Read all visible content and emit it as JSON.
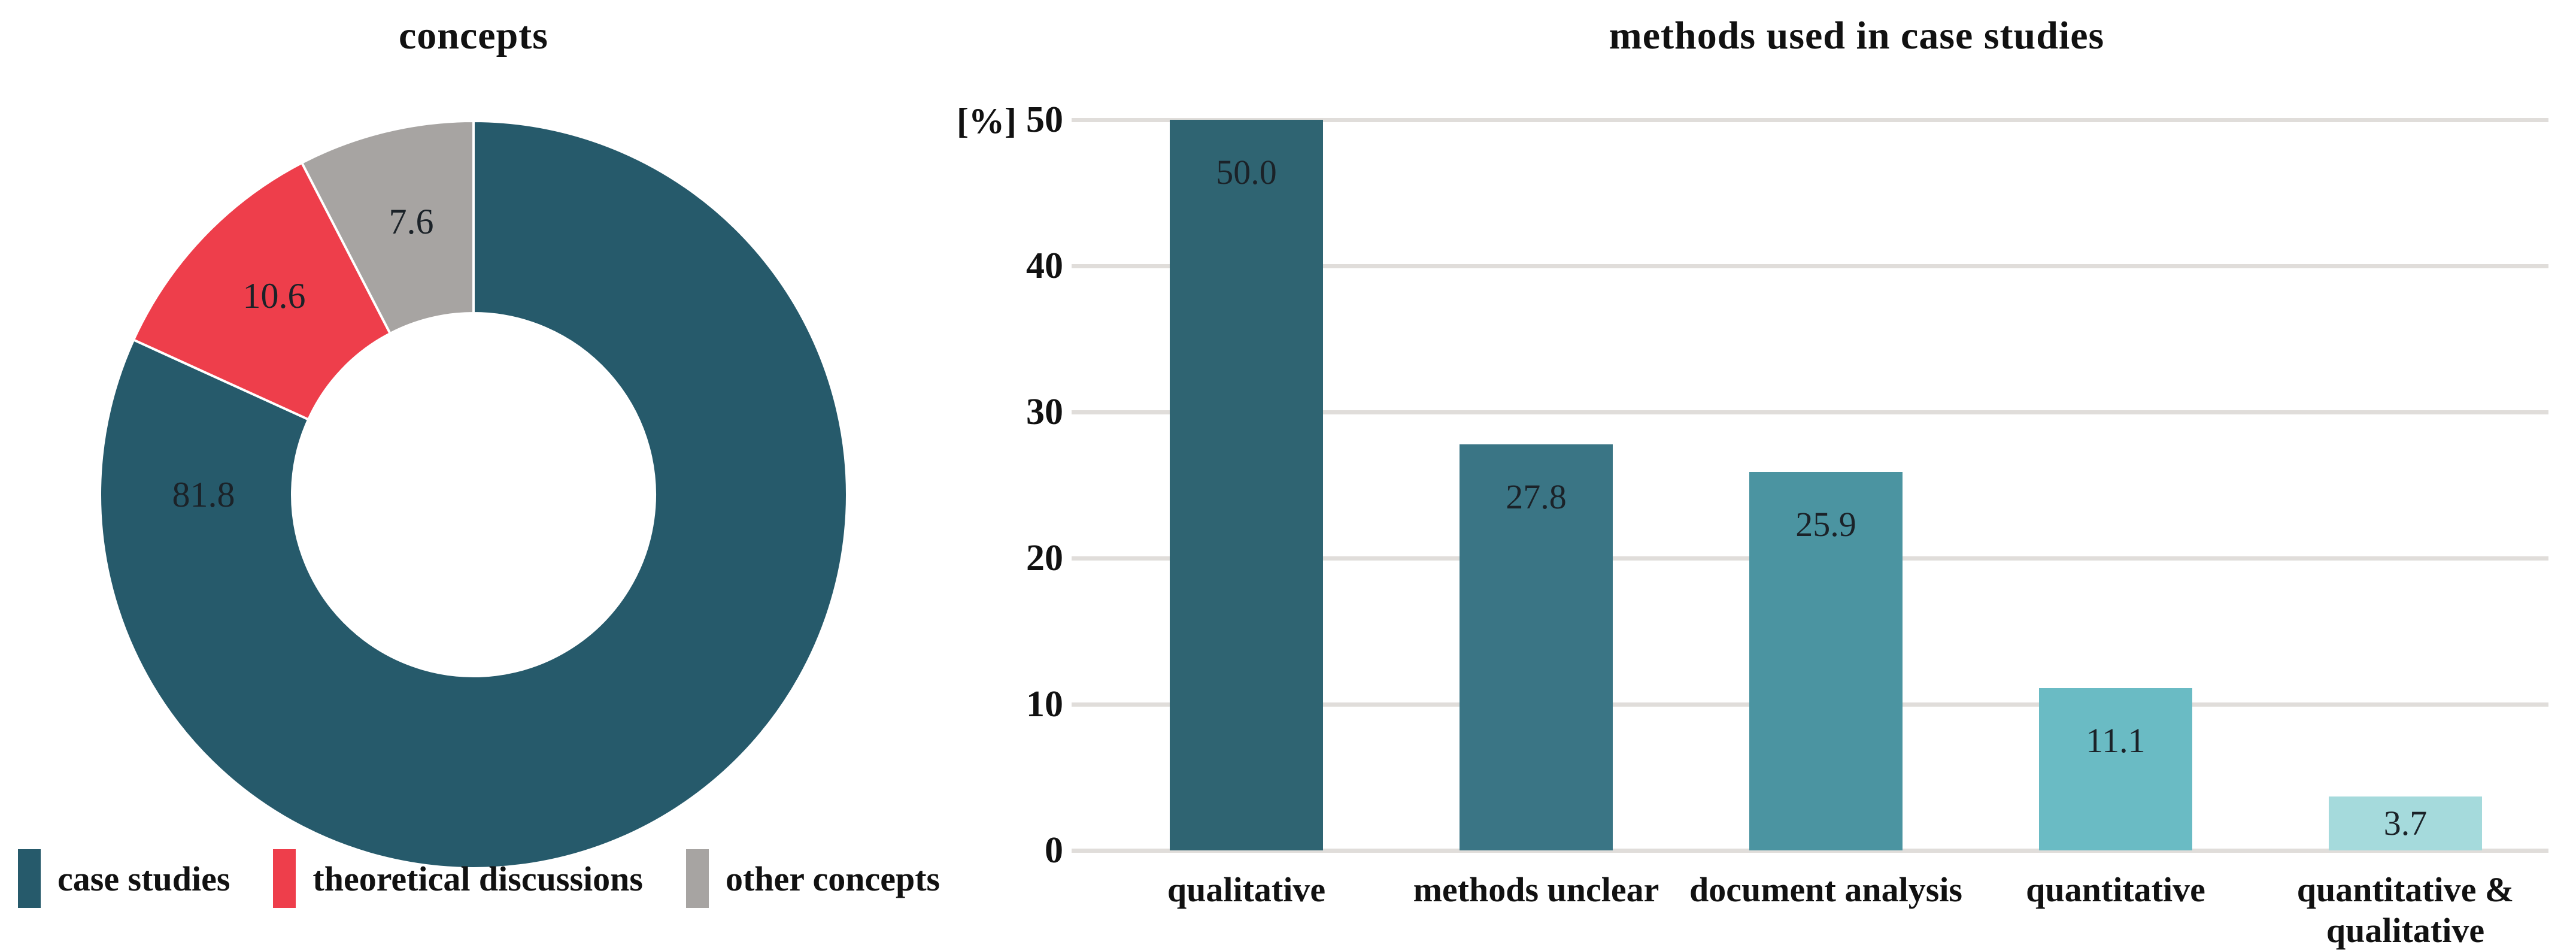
{
  "figure": {
    "background": "#ffffff",
    "text_color": "#111111",
    "gridline_color": "#e0ddda"
  },
  "chart_data": [
    {
      "type": "pie",
      "subtype": "donut",
      "title": "concepts",
      "labels": [
        "case studies",
        "theoretical discussions",
        "other concepts"
      ],
      "values": [
        81.8,
        10.6,
        7.6
      ],
      "value_labels": [
        "81.8",
        "10.6",
        "7.6"
      ],
      "colors": [
        "#265a6b",
        "#ee3e4b",
        "#a7a4a2"
      ],
      "start_angle_deg": 0,
      "direction": "clockwise",
      "inner_radius_ratio": 0.485,
      "legend_position": "bottom"
    },
    {
      "type": "bar",
      "title": "methods used in case studies",
      "unit_label": "[%]",
      "categories": [
        "qualitative",
        "methods unclear",
        "document analysis",
        "quantitative",
        "quantitative & qualitative"
      ],
      "category_lines": [
        [
          "qualitative"
        ],
        [
          "methods unclear"
        ],
        [
          "document analysis"
        ],
        [
          "quantitative"
        ],
        [
          "quantitative &",
          "qualitative"
        ]
      ],
      "values": [
        50.0,
        27.8,
        25.9,
        11.1,
        3.7
      ],
      "value_labels": [
        "50.0",
        "27.8",
        "25.9",
        "11.1",
        "3.7"
      ],
      "bar_colors": [
        "#2f6472",
        "#3a7585",
        "#4b94a1",
        "#6abbc4",
        "#a5dadc"
      ],
      "ylim": [
        0,
        50
      ],
      "yticks": [
        "50",
        "40",
        "30",
        "20",
        "10",
        "0"
      ],
      "grid": true,
      "legend": "none"
    }
  ]
}
